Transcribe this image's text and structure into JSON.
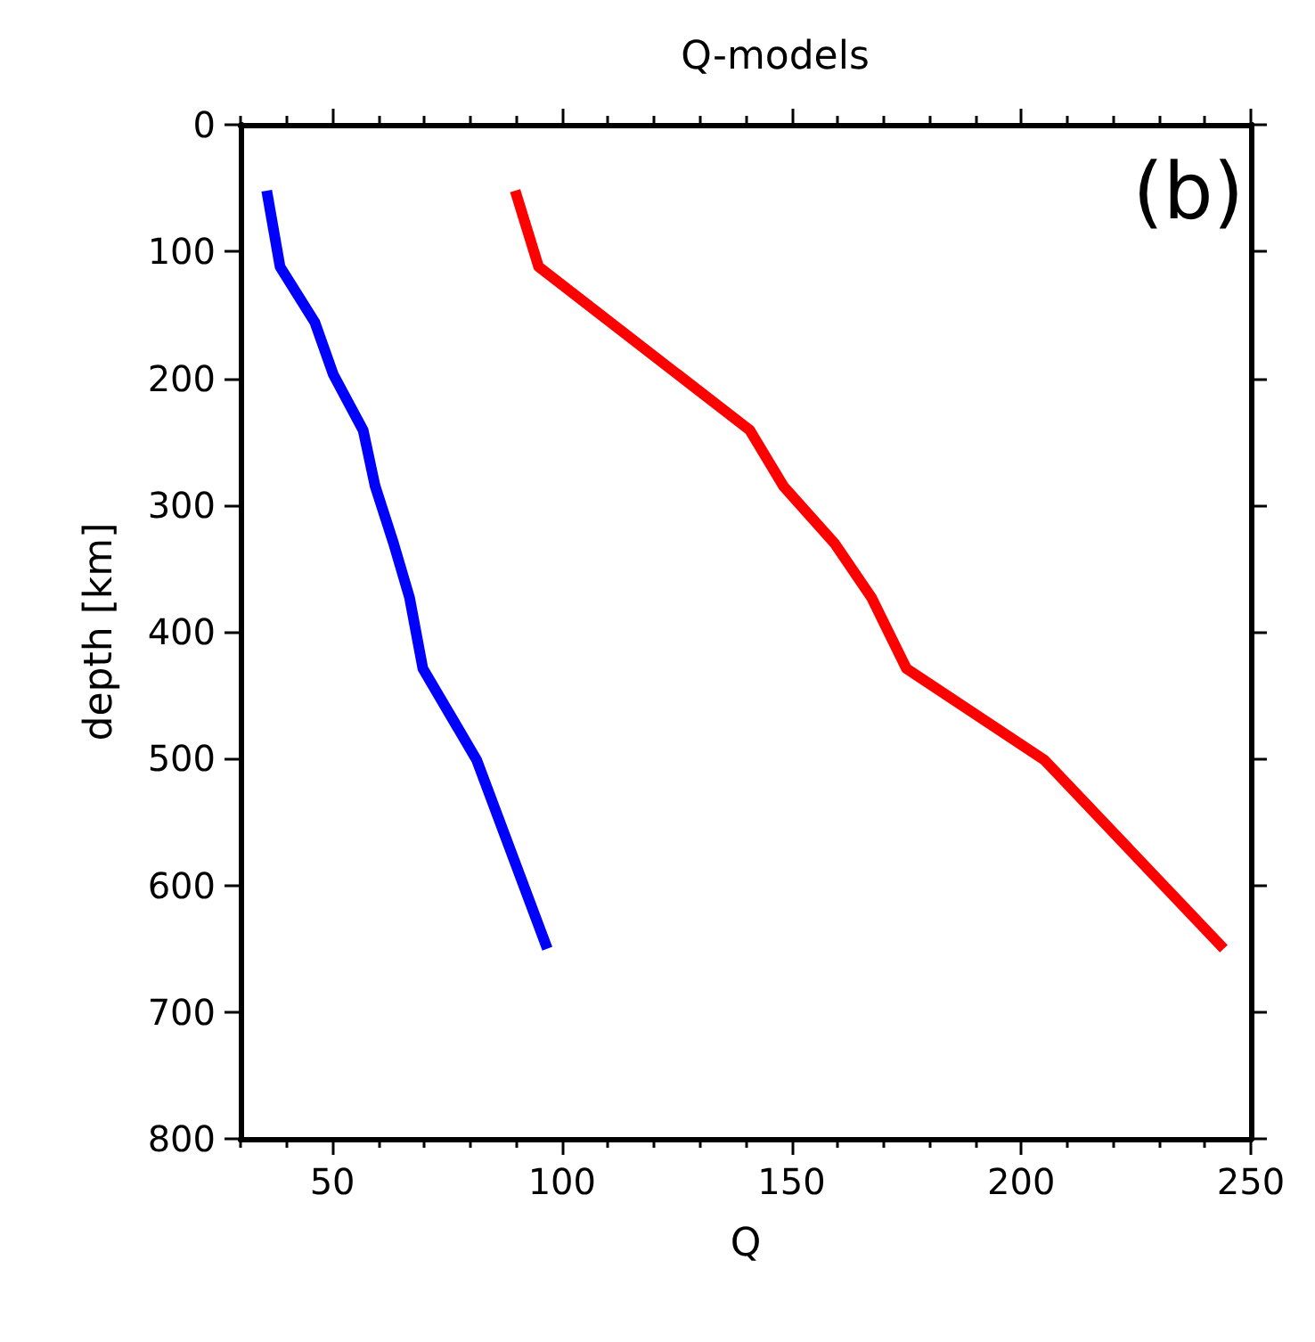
{
  "chart_data": {
    "type": "line",
    "title": "Q-models",
    "xlabel": "Q",
    "ylabel": "depth [km]",
    "annotations": [
      "(b)"
    ],
    "xlim": [
      30,
      250
    ],
    "xticks": [
      {
        "value": 30,
        "label": null
      },
      {
        "value": 40,
        "label": null
      },
      50,
      {
        "value": 60,
        "label": null
      },
      {
        "value": 70,
        "label": null
      },
      {
        "value": 80,
        "label": null
      },
      {
        "value": 90,
        "label": null
      },
      100,
      {
        "value": 110,
        "label": null
      },
      {
        "value": 120,
        "label": null
      },
      {
        "value": 130,
        "label": null
      },
      {
        "value": 140,
        "label": null
      },
      150,
      {
        "value": 160,
        "label": null
      },
      {
        "value": 170,
        "label": null
      },
      {
        "value": 180,
        "label": null
      },
      {
        "value": 190,
        "label": null
      },
      200,
      {
        "value": 210,
        "label": null
      },
      {
        "value": 220,
        "label": null
      },
      {
        "value": 230,
        "label": null
      },
      {
        "value": 240,
        "label": null
      },
      250
    ],
    "ylim": [
      800,
      0
    ],
    "yticks": [
      0,
      100,
      200,
      300,
      400,
      500,
      600,
      700,
      800
    ],
    "grid": false,
    "marker": "none",
    "line_style": "solid",
    "series": [
      {
        "color": "#0000ff",
        "x": [
          35.7,
          38.6,
          46.2,
          50.2,
          56.7,
          59.3,
          63.3,
          66.8,
          69.7,
          81.4,
          96.8
        ],
        "values": [
          52,
          112,
          156,
          197,
          241,
          285,
          330,
          373,
          429,
          501,
          650
        ]
      },
      {
        "color": "#ff0000",
        "x": [
          89.8,
          94.9,
          140.9,
          148.2,
          159.3,
          167.4,
          175,
          205,
          244.1
        ],
        "values": [
          52,
          112,
          241,
          285,
          330,
          373,
          429,
          501,
          650
        ]
      }
    ]
  }
}
